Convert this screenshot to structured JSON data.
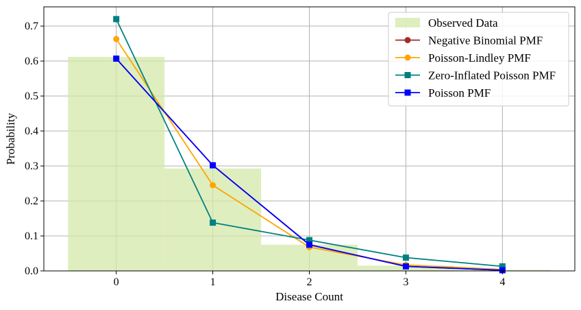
{
  "chart_data": {
    "type": "bar",
    "title": "",
    "xlabel": "Disease Count",
    "ylabel": "Probability",
    "xlim": [
      -0.75,
      4.75
    ],
    "ylim": [
      0,
      0.755
    ],
    "xticks": [
      0,
      1,
      2,
      3,
      4
    ],
    "yticks": [
      0.0,
      0.1,
      0.2,
      0.3,
      0.4,
      0.5,
      0.6,
      0.7
    ],
    "grid": true,
    "legend_position": "top-right",
    "histogram": {
      "name": "Observed Data",
      "color": "#d4e8a8",
      "bins": [
        {
          "x0": -0.5,
          "x1": 0.5,
          "value": 0.612
        },
        {
          "x0": 0.5,
          "x1": 1.5,
          "value": 0.293
        },
        {
          "x0": 1.5,
          "x1": 2.5,
          "value": 0.075
        },
        {
          "x0": 2.5,
          "x1": 3.5,
          "value": 0.015
        },
        {
          "x0": 3.5,
          "x1": 4.5,
          "value": 0.003
        }
      ]
    },
    "series": [
      {
        "name": "Negative Binomial PMF",
        "color": "#a52a2a",
        "marker": "circle",
        "x": [
          0,
          1,
          2,
          3,
          4
        ],
        "values": [
          0.607,
          0.302,
          0.075,
          0.013,
          0.002
        ]
      },
      {
        "name": "Poisson-Lindley PMF",
        "color": "#ffa500",
        "marker": "circle",
        "x": [
          0,
          1,
          2,
          3,
          4
        ],
        "values": [
          0.663,
          0.245,
          0.068,
          0.017,
          0.004
        ]
      },
      {
        "name": "Zero-Inflated Poisson PMF",
        "color": "#008080",
        "marker": "square",
        "x": [
          0,
          1,
          2,
          3,
          4
        ],
        "values": [
          0.72,
          0.138,
          0.088,
          0.038,
          0.013
        ]
      },
      {
        "name": "Poisson PMF",
        "color": "#0000ff",
        "marker": "square",
        "x": [
          0,
          1,
          2,
          3,
          4
        ],
        "values": [
          0.607,
          0.302,
          0.075,
          0.013,
          0.002
        ]
      }
    ]
  }
}
